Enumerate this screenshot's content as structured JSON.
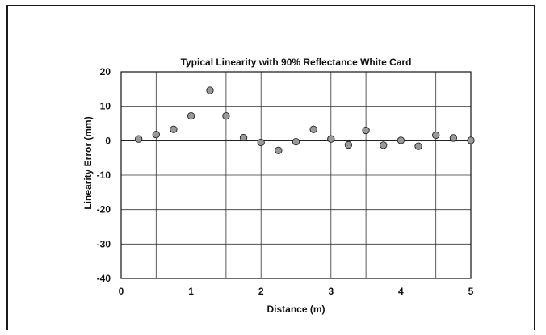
{
  "chart_data": {
    "type": "scatter",
    "title": "Typical Linearity with 90% Reflectance White Card",
    "xlabel": "Distance (m)",
    "ylabel": "Linearity Error (mm)",
    "xlim": [
      0,
      5
    ],
    "ylim": [
      -40,
      20
    ],
    "x_ticks": [
      0,
      1,
      2,
      3,
      4,
      5
    ],
    "y_ticks": [
      20,
      10,
      0,
      -10,
      -20,
      -30,
      -40
    ],
    "x_tick_labels": [
      "0",
      "1",
      "2",
      "3",
      "4",
      "5"
    ],
    "y_tick_labels": [
      "20",
      "10",
      "0",
      "-10",
      "-20",
      "-30",
      "-40"
    ],
    "grid": true,
    "marker_color": "#999999",
    "points": [
      {
        "x": 0.25,
        "y": 0.5
      },
      {
        "x": 0.5,
        "y": 1.8
      },
      {
        "x": 0.75,
        "y": 3.3
      },
      {
        "x": 1.0,
        "y": 7.2
      },
      {
        "x": 1.27,
        "y": 14.6
      },
      {
        "x": 1.5,
        "y": 7.2
      },
      {
        "x": 1.75,
        "y": 0.9
      },
      {
        "x": 2.0,
        "y": -0.5
      },
      {
        "x": 2.25,
        "y": -2.8
      },
      {
        "x": 2.5,
        "y": -0.3
      },
      {
        "x": 2.75,
        "y": 3.3
      },
      {
        "x": 3.0,
        "y": 0.5
      },
      {
        "x": 3.25,
        "y": -1.2
      },
      {
        "x": 3.5,
        "y": 3.0
      },
      {
        "x": 3.75,
        "y": -1.3
      },
      {
        "x": 4.0,
        "y": 0.1
      },
      {
        "x": 4.25,
        "y": -1.6
      },
      {
        "x": 4.5,
        "y": 1.6
      },
      {
        "x": 4.75,
        "y": 0.8
      },
      {
        "x": 5.0,
        "y": 0.1
      }
    ]
  }
}
